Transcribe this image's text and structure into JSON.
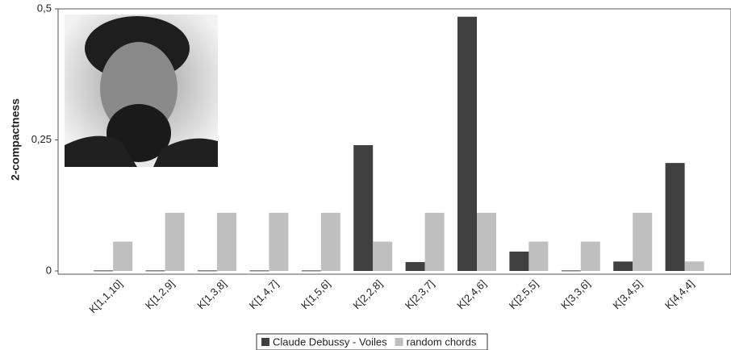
{
  "chart_data": {
    "type": "bar",
    "y_label": "2-compactness",
    "categories": [
      "K[1,1,10]",
      "K[1,2,9]",
      "K[1,3,8]",
      "K[1,4,7]",
      "K[1,5,6]",
      "K[2,2,8]",
      "K[2,3,7]",
      "K[2,4,6]",
      "K[2,5,5]",
      "K[3,3,6]",
      "K[3,4,5]",
      "K[4,4,4]"
    ],
    "series": [
      {
        "name": "Claude Debussy - Voiles",
        "color": "#404040",
        "values": [
          0.001,
          0.001,
          0.001,
          0.001,
          0.001,
          0.24,
          0.017,
          0.485,
          0.037,
          0.001,
          0.018,
          0.206
        ]
      },
      {
        "name": "random chords",
        "color": "#bfbfbf",
        "values": [
          0.056,
          0.111,
          0.111,
          0.111,
          0.111,
          0.056,
          0.111,
          0.111,
          0.056,
          0.056,
          0.111,
          0.018
        ]
      }
    ],
    "ylim": [
      0,
      0.5
    ],
    "yticks": [
      0,
      {
        "value": 0.25,
        "label": "0,25"
      },
      {
        "value": 0.5,
        "label": "0,5"
      }
    ],
    "legend": "bottom"
  }
}
